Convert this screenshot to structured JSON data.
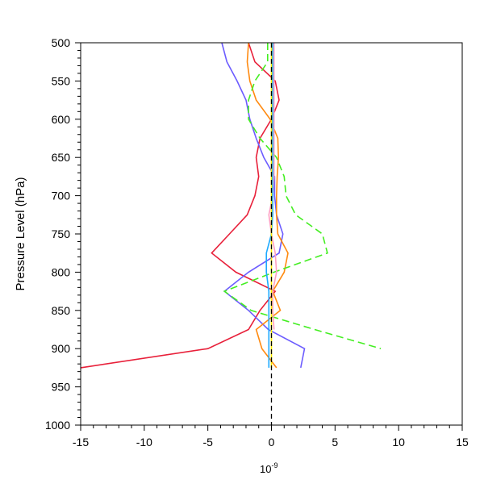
{
  "chart_data": {
    "type": "line",
    "title": "",
    "xlabel": "10",
    "xlabel_exponent": "-9",
    "ylabel": "Pressure Level (hPa)",
    "xlim": [
      -15,
      15
    ],
    "ylim": [
      500,
      1000
    ],
    "y_inverted": true,
    "grid": false,
    "legend": "none",
    "xticks": [
      -15,
      -10,
      -5,
      0,
      5,
      10,
      15
    ],
    "yticks": [
      500,
      550,
      600,
      650,
      700,
      750,
      800,
      850,
      900,
      950,
      1000
    ],
    "levels": [
      500,
      525,
      550,
      575,
      600,
      625,
      650,
      675,
      700,
      725,
      750,
      775,
      800,
      825,
      850,
      875,
      900,
      925
    ],
    "series": [
      {
        "color": "#e8203a",
        "dash": "solid",
        "values": [
          -1.8,
          -1.3,
          0.3,
          0.6,
          0.0,
          -0.9,
          -1.2,
          -1.0,
          -1.3,
          -1.9,
          -3.3,
          -4.7,
          -2.8,
          0.3,
          -0.9,
          -1.8,
          -5.0,
          -15.0
        ]
      },
      {
        "color": "#6c5cff",
        "dash": "solid",
        "values": [
          -3.9,
          -3.5,
          -2.7,
          -2.0,
          -1.7,
          -1.2,
          -0.6,
          0.25,
          0.25,
          0.4,
          0.9,
          0.6,
          -1.8,
          -3.7,
          -1.8,
          -0.25,
          2.6,
          2.3
        ]
      },
      {
        "color": "#ff8a10",
        "dash": "solid",
        "values": [
          -1.8,
          -1.9,
          -1.7,
          -1.2,
          -0.1,
          0.5,
          0.55,
          0.45,
          0.4,
          0.4,
          0.5,
          1.3,
          1.0,
          0.1,
          0.7,
          -1.2,
          -0.75,
          0.4
        ]
      },
      {
        "color": "#44ee22",
        "dash": "dashed",
        "values": [
          -0.3,
          -0.3,
          -1.3,
          -1.8,
          -1.8,
          -0.9,
          0.4,
          1.0,
          1.15,
          1.9,
          4.0,
          4.4,
          0.2,
          -3.7,
          -1.6,
          3.4,
          8.6,
          null
        ]
      },
      {
        "color": "#ffa0c0",
        "dash": "solid",
        "values": [
          0.2,
          0.2,
          0.2,
          0.2,
          0.2,
          0.2,
          0.2,
          0.2,
          0.1,
          -0.2,
          0.0,
          0.3,
          0.4,
          0.1,
          0.1,
          0.2,
          null,
          null
        ]
      },
      {
        "color": "#1eaaff",
        "dash": "solid",
        "values": [
          0.1,
          0.1,
          0.1,
          0.1,
          0.1,
          0.1,
          0.1,
          0.1,
          0.1,
          0.1,
          0.0,
          -0.4,
          -0.4,
          -0.2,
          -0.2,
          -0.2,
          -0.2,
          -0.2
        ]
      },
      {
        "color": "#ffee00",
        "dash": "solid",
        "values": [
          0.0,
          0.0,
          0.0,
          0.0,
          0.0,
          0.0,
          0.0,
          0.0,
          0.0,
          0.0,
          0.0,
          0.0,
          0.0,
          0.0,
          0.0,
          0.0,
          0.0,
          0.0
        ]
      }
    ],
    "reference_line": {
      "x": 0,
      "color": "#000000",
      "dash": "dashed",
      "ylim": [
        500,
        1000
      ]
    }
  }
}
